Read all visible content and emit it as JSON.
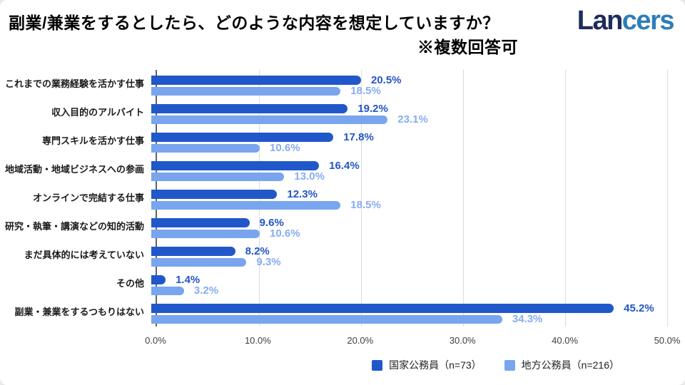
{
  "header": {
    "title_line1": "副業/兼業をするとしたら、どのような内容を想定していますか？",
    "title_line2": "※複数回答可",
    "logo": {
      "part1": "Lan",
      "part2": "cers"
    }
  },
  "colors": {
    "series1_bar": "#2158C9",
    "series2_bar": "#79A5EE",
    "series1_label": "#2455C6",
    "series2_label": "#86ACF0",
    "logo_navy": "#1F2C5C",
    "logo_blue": "#2E7DB9",
    "title_text": "#000000",
    "category_text": "#1A1A1A",
    "tick_text": "#3C4043",
    "legend_text": "#202124",
    "gridline": "#D9DCE3",
    "axis_line": "#5F6368"
  },
  "chart_data": {
    "type": "bar",
    "orientation": "horizontal",
    "title": "副業/兼業をするとしたら、どのような内容を想定していますか？",
    "note": "※複数回答可",
    "categories": [
      "これまでの業務経験を活かす仕事",
      "収入目的のアルバイト",
      "専門スキルを活かす仕事",
      "地域活動・地域ビジネスへの参画",
      "オンラインで完結する仕事",
      "研究・執筆・講演などの知的活動",
      "まだ具体的には考えていない",
      "その他",
      "副業・兼業をするつもりはない"
    ],
    "series": [
      {
        "name": "国家公務員（n=73）",
        "values": [
          20.5,
          19.2,
          17.8,
          16.4,
          12.3,
          9.6,
          8.2,
          1.4,
          45.2
        ]
      },
      {
        "name": "地方公務員（n=216）",
        "values": [
          18.5,
          23.1,
          10.6,
          13.0,
          18.5,
          10.6,
          9.3,
          3.2,
          34.3
        ]
      }
    ],
    "xlim": [
      0,
      50
    ],
    "tick_values": [
      0,
      10,
      20,
      30,
      40,
      50
    ],
    "tick_labels": [
      "0.0%",
      "10.0%",
      "20.0%",
      "30.0%",
      "40.0%",
      "50.0%"
    ],
    "value_suffix": "%",
    "grid": true,
    "legend_position": "bottom-right"
  }
}
